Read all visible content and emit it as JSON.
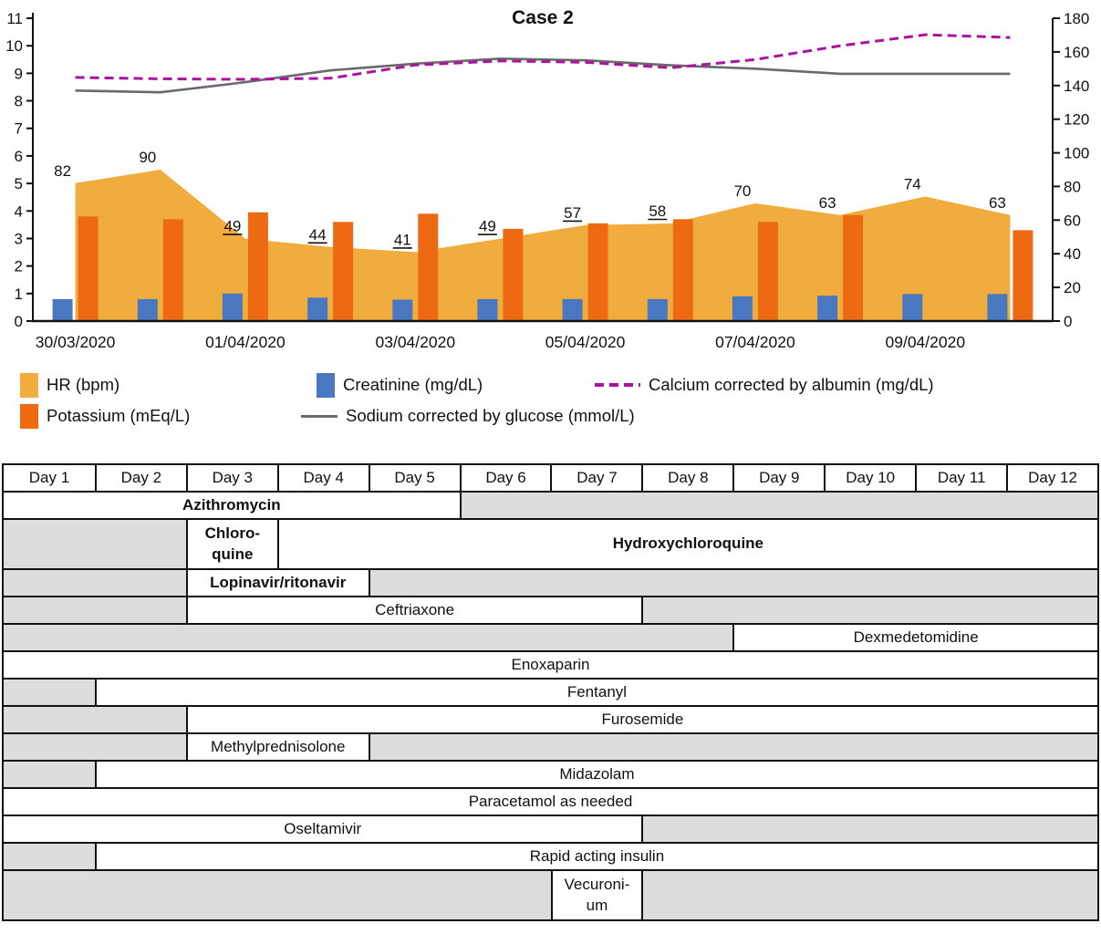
{
  "figure_title": "Case 2",
  "chart_data": {
    "type": "combo",
    "x_slot_count": 12,
    "x_tick_labels": [
      {
        "slot": 0,
        "label": "30/03/2020"
      },
      {
        "slot": 2,
        "label": "01/04/2020"
      },
      {
        "slot": 4,
        "label": "03/04/2020"
      },
      {
        "slot": 6,
        "label": "05/04/2020"
      },
      {
        "slot": 8,
        "label": "07/04/2020"
      },
      {
        "slot": 10,
        "label": "09/04/2020"
      }
    ],
    "left_axis": {
      "min": 0,
      "max": 11,
      "tick_step": 1
    },
    "right_axis": {
      "min": 0,
      "max": 180,
      "tick_step": 20
    },
    "series": [
      {
        "name": "HR (bpm)",
        "type": "area",
        "axis": "right",
        "color": "#F0AC3C",
        "values": [
          82,
          90,
          49,
          44,
          41,
          49,
          57,
          58,
          70,
          63,
          74,
          63
        ],
        "value_labels_underlined": [
          false,
          false,
          true,
          true,
          true,
          true,
          true,
          true,
          false,
          false,
          false,
          false
        ]
      },
      {
        "name": "Potassium (mEq/L)",
        "type": "bar",
        "axis": "left",
        "color": "#EE6A12",
        "values": [
          3.8,
          3.7,
          3.95,
          3.6,
          3.9,
          3.35,
          3.55,
          3.7,
          3.6,
          3.85,
          null,
          3.3
        ]
      },
      {
        "name": "Creatinine (mg/dL)",
        "type": "bar",
        "axis": "left",
        "color": "#4A78C0",
        "values": [
          0.8,
          0.8,
          1.0,
          0.85,
          0.78,
          0.8,
          0.8,
          0.8,
          0.9,
          0.92,
          0.98,
          0.98
        ]
      },
      {
        "name": "Sodium corrected by glucose (mmol/L)",
        "type": "line",
        "axis": "right",
        "color": "#6A6A6A",
        "values": [
          137,
          136,
          142,
          149,
          153,
          156,
          155,
          152,
          150,
          147,
          147,
          147
        ]
      },
      {
        "name": "Calcium corrected by albumin (mg/dL)",
        "type": "dashed-line",
        "axis": "left",
        "color": "#A814A0",
        "values": [
          8.85,
          8.8,
          8.78,
          8.82,
          9.3,
          9.45,
          9.4,
          9.2,
          9.5,
          10.0,
          10.4,
          10.3
        ]
      }
    ]
  },
  "table": {
    "header": [
      "Day 1",
      "Day 2",
      "Day 3",
      "Day 4",
      "Day 5",
      "Day 6",
      "Day 7",
      "Day 8",
      "Day 9",
      "Day 10",
      "Day 11",
      "Day 12"
    ],
    "rows": [
      {
        "tall": false,
        "cells": [
          {
            "span": 5,
            "text": "Azithromycin",
            "bold": true,
            "fill": "white"
          },
          {
            "span": 7,
            "fill": "gray"
          }
        ]
      },
      {
        "tall": true,
        "cells": [
          {
            "span": 2,
            "fill": "gray"
          },
          {
            "span": 1,
            "text": "Chloro-\nquine",
            "bold": true,
            "fill": "white"
          },
          {
            "span": 9,
            "text": "Hydroxychloroquine",
            "bold": true,
            "fill": "white"
          }
        ]
      },
      {
        "tall": false,
        "cells": [
          {
            "span": 2,
            "fill": "gray"
          },
          {
            "span": 2,
            "text": "Lopinavir/ritonavir",
            "bold": true,
            "fill": "white"
          },
          {
            "span": 8,
            "fill": "gray"
          }
        ]
      },
      {
        "tall": false,
        "cells": [
          {
            "span": 2,
            "fill": "gray"
          },
          {
            "span": 5,
            "text": "Ceftriaxone",
            "bold": false,
            "fill": "white"
          },
          {
            "span": 5,
            "fill": "gray"
          }
        ]
      },
      {
        "tall": false,
        "cells": [
          {
            "span": 8,
            "fill": "gray"
          },
          {
            "span": 4,
            "text": "Dexmedetomidine",
            "bold": false,
            "fill": "white"
          }
        ]
      },
      {
        "tall": false,
        "cells": [
          {
            "span": 12,
            "text": "Enoxaparin",
            "bold": false,
            "fill": "white"
          }
        ]
      },
      {
        "tall": false,
        "cells": [
          {
            "span": 1,
            "fill": "gray"
          },
          {
            "span": 11,
            "text": "Fentanyl",
            "bold": false,
            "fill": "white"
          }
        ]
      },
      {
        "tall": false,
        "cells": [
          {
            "span": 2,
            "fill": "gray"
          },
          {
            "span": 10,
            "text": "Furosemide",
            "bold": false,
            "fill": "white"
          }
        ]
      },
      {
        "tall": false,
        "cells": [
          {
            "span": 2,
            "fill": "gray"
          },
          {
            "span": 2,
            "text": "Methylprednisolone",
            "bold": false,
            "fill": "white"
          },
          {
            "span": 8,
            "fill": "gray"
          }
        ]
      },
      {
        "tall": false,
        "cells": [
          {
            "span": 1,
            "fill": "gray"
          },
          {
            "span": 11,
            "text": "Midazolam",
            "bold": false,
            "fill": "white"
          }
        ]
      },
      {
        "tall": false,
        "cells": [
          {
            "span": 12,
            "text": "Paracetamol as needed",
            "bold": false,
            "fill": "white"
          }
        ]
      },
      {
        "tall": false,
        "cells": [
          {
            "span": 7,
            "text": "Oseltamivir",
            "bold": false,
            "fill": "white"
          },
          {
            "span": 5,
            "fill": "gray"
          }
        ]
      },
      {
        "tall": false,
        "cells": [
          {
            "span": 1,
            "fill": "gray"
          },
          {
            "span": 11,
            "text": "Rapid acting insulin",
            "bold": false,
            "fill": "white"
          }
        ]
      },
      {
        "tall": true,
        "cells": [
          {
            "span": 6,
            "fill": "gray"
          },
          {
            "span": 1,
            "text": "Vecuroni-\num",
            "bold": false,
            "fill": "white"
          },
          {
            "span": 5,
            "fill": "gray"
          }
        ]
      }
    ]
  }
}
